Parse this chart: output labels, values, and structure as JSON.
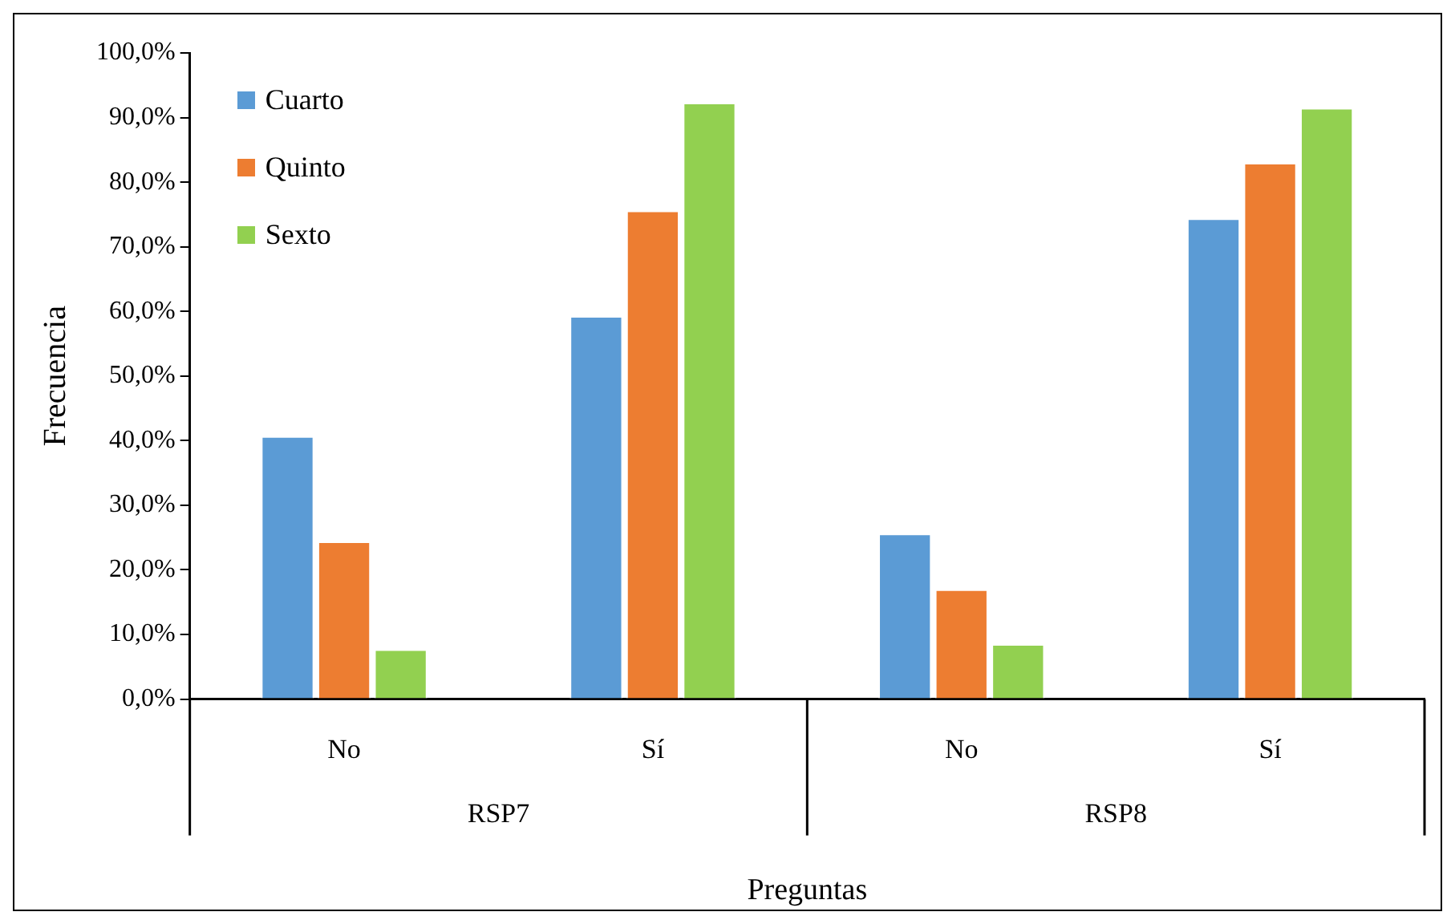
{
  "chart_data": {
    "type": "bar",
    "xlabel": "Preguntas",
    "ylabel": "Frecuencia",
    "categories": [
      "No",
      "Sí",
      "No",
      "Sí"
    ],
    "annotations": [
      "RSP7",
      "RSP8"
    ],
    "series": [
      {
        "name": "Cuarto",
        "color": "#5b9bd5",
        "values": [
          40.7,
          59.3,
          25.6,
          74.4
        ]
      },
      {
        "name": "Quinto",
        "color": "#ed7d31",
        "values": [
          24.4,
          75.6,
          17.0,
          83.0
        ]
      },
      {
        "name": "Sexto",
        "color": "#92d050",
        "values": [
          7.7,
          92.3,
          8.5,
          91.5
        ]
      }
    ],
    "ylim": [
      0,
      100
    ],
    "yticks": [
      {
        "value": 0,
        "label": "0,0%"
      },
      {
        "value": 10,
        "label": "10,0%"
      },
      {
        "value": 20,
        "label": "20,0%"
      },
      {
        "value": 30,
        "label": "30,0%"
      },
      {
        "value": 40,
        "label": "40,0%"
      },
      {
        "value": 50,
        "label": "50,0%"
      },
      {
        "value": 60,
        "label": "60,0%"
      },
      {
        "value": 70,
        "label": "70,0%"
      },
      {
        "value": 80,
        "label": "80,0%"
      },
      {
        "value": 90,
        "label": "90,0%"
      },
      {
        "value": 100,
        "label": "100,0%"
      }
    ],
    "legend": "top left"
  }
}
